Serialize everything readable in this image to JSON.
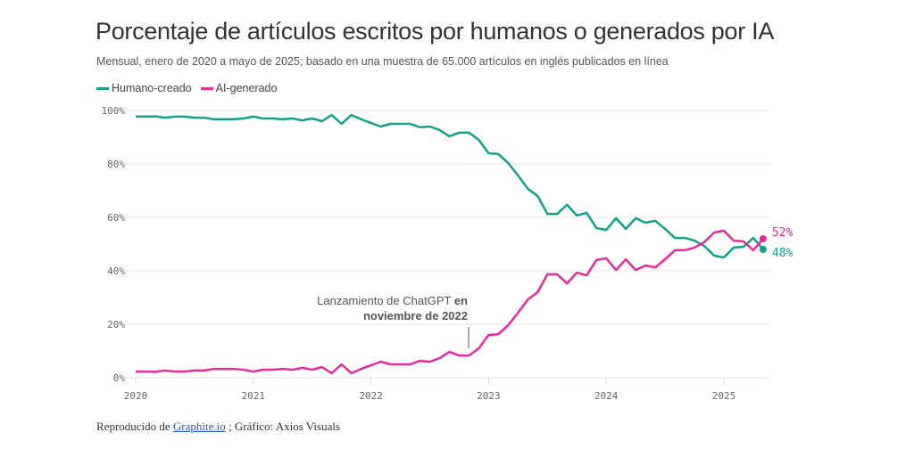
{
  "chart_data": {
    "type": "line",
    "title": "Porcentaje de artículos escritos por humanos o generados por IA",
    "subtitle": "Mensual, enero de 2020 a mayo de 2025; basado en una muestra de 65.000 artículos en inglés publicados en línea",
    "x_start": "2020-01",
    "x_end": "2025-05",
    "x_ticks": [
      "2020",
      "2021",
      "2022",
      "2023",
      "2024",
      "2025"
    ],
    "y_ticks": [
      "0%",
      "20%",
      "40%",
      "60%",
      "80%",
      "100%"
    ],
    "ylim": [
      0,
      100
    ],
    "grid": true,
    "legend_position": "top-left",
    "series": [
      {
        "name": "Humano-creado",
        "color": "#14a08c",
        "end_label": "48%",
        "values": [
          97.7,
          97.7,
          97.8,
          97.3,
          97.7,
          97.7,
          97.3,
          97.3,
          96.7,
          96.7,
          96.7,
          97,
          97.7,
          97,
          97,
          96.7,
          97,
          96.3,
          97,
          96,
          98.3,
          95,
          98.3,
          96.7,
          95.3,
          94,
          95,
          95,
          95,
          93.7,
          94,
          92.7,
          90.3,
          91.7,
          91.7,
          89,
          84,
          83.7,
          80.3,
          75.7,
          70.7,
          68,
          61.3,
          61.3,
          64.7,
          60.7,
          61.7,
          56,
          55.3,
          59.7,
          55.7,
          59.7,
          58,
          58.7,
          55.7,
          52.3,
          52.3,
          51.3,
          49.3,
          45.7,
          45,
          48.7,
          49,
          52.3,
          48
        ]
      },
      {
        "name": "AI-generado",
        "color": "#e8299b",
        "end_label": "52%",
        "values": [
          2.3,
          2.3,
          2.2,
          2.7,
          2.3,
          2.3,
          2.7,
          2.7,
          3.3,
          3.3,
          3.3,
          3,
          2.3,
          3,
          3,
          3.3,
          3,
          3.7,
          3,
          4,
          1.7,
          5,
          1.7,
          3.3,
          4.7,
          6,
          5,
          5,
          5,
          6.3,
          6,
          7.3,
          9.7,
          8.3,
          8.3,
          11,
          16,
          16.3,
          19.7,
          24.3,
          29.3,
          32,
          38.7,
          38.7,
          35.3,
          39.3,
          38.3,
          44,
          44.7,
          40.3,
          44.3,
          40.3,
          42,
          41.3,
          44.3,
          47.7,
          47.7,
          48.7,
          50.7,
          54.3,
          55,
          51.3,
          51,
          47.7,
          52
        ]
      }
    ],
    "annotation": {
      "line1": "Lanzamiento de ChatGPT",
      "line1_bold": "en",
      "line2": "noviembre de 2022",
      "x": "2022-11"
    }
  },
  "footer": {
    "prefix": "Reproducido de ",
    "link": "Graphite.io",
    "suffix": " ; Gráfico: Axios Visuals"
  }
}
